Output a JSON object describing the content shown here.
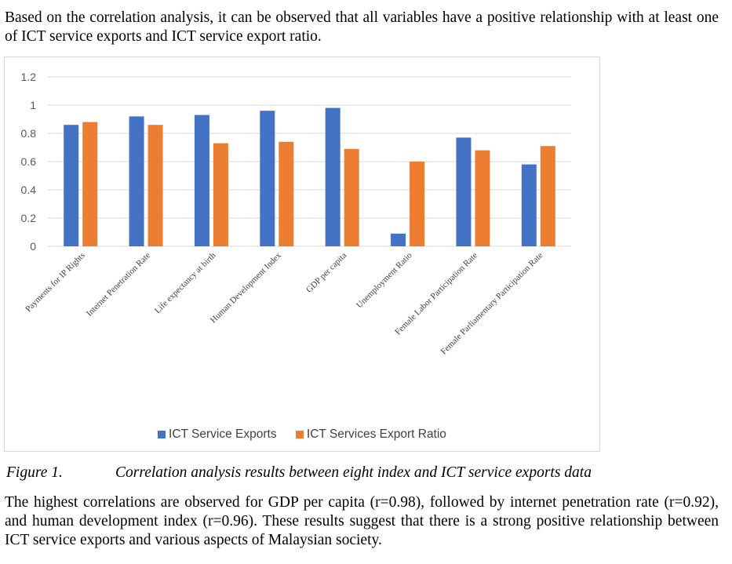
{
  "text": {
    "intro": "Based on the correlation analysis, it can be observed that all variables have a positive relationship with at least one of ICT service exports and ICT service export ratio.",
    "figure_label": "Figure 1.",
    "figure_caption": "Correlation analysis results between eight index and ICT service exports data",
    "body": "The highest correlations are observed for GDP per capita (r=0.98), followed by internet penetration rate (r=0.92), and human development index (r=0.96). These results suggest that there is a strong positive relationship between ICT service exports and various aspects of Malaysian society."
  },
  "chart_data": {
    "type": "bar",
    "title": "",
    "xlabel": "",
    "ylabel": "",
    "categories": [
      "Payments for IP Rights",
      "Internet Penetration Rate",
      "Life expectancy at birth",
      "Human Development Index",
      "GDP per capita",
      "Unemployment Ratio",
      "Female Labor Participation Rate",
      "Female Parliamentary Participation Rate"
    ],
    "series": [
      {
        "name": "ICT Service Exports",
        "color": "#4472c4",
        "values": [
          0.86,
          0.92,
          0.93,
          0.96,
          0.98,
          0.09,
          0.77,
          0.58
        ]
      },
      {
        "name": "ICT Services Export Ratio",
        "color": "#ed7d31",
        "values": [
          0.88,
          0.86,
          0.73,
          0.74,
          0.69,
          0.6,
          0.68,
          0.71
        ]
      }
    ],
    "ylim": [
      0,
      1.2
    ],
    "yticks": [
      "0",
      "0.2",
      "0.4",
      "0.6",
      "0.8",
      "1",
      "1.2"
    ],
    "grid": true,
    "legend": "bottom"
  }
}
